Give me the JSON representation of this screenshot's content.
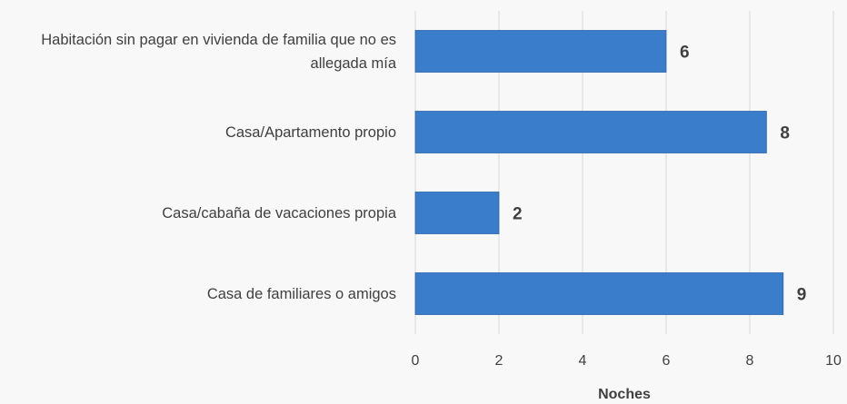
{
  "chart_data": {
    "type": "bar",
    "orientation": "horizontal",
    "categories": [
      "Habitación sin pagar en vivienda de familia que no es allegada mía",
      "Casa/Apartamento propio",
      "Casa/cabaña de vacaciones propia",
      "Casa de familiares o amigos"
    ],
    "values": [
      6,
      8.4,
      2,
      8.8
    ],
    "value_labels": [
      "6",
      "8",
      "2",
      "9"
    ],
    "color": "#3a7ecb",
    "xlabel": "Noches",
    "xlim": [
      0,
      10
    ],
    "xticks": [
      0,
      2,
      4,
      6,
      8,
      10
    ],
    "grid": true
  }
}
